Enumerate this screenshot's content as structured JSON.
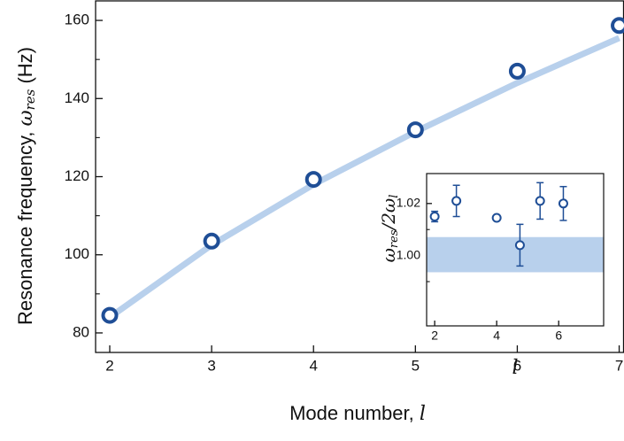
{
  "chart_data": [
    {
      "type": "scatter",
      "x_label": "Mode number, ",
      "x_label_symbol": "l",
      "y_label": "Resonance frequency, ",
      "y_label_symbol": "ω",
      "y_label_sub": "res",
      "y_label_unit": " (Hz)",
      "xlim": [
        1.861,
        7.043
      ],
      "ylim": [
        75,
        165
      ],
      "xticks": [
        2,
        3,
        4,
        5,
        6,
        7
      ],
      "yticks": [
        80,
        100,
        120,
        140,
        160
      ],
      "y_minor_ticks": [
        90,
        110,
        130,
        150
      ],
      "x": [
        2,
        3,
        4,
        5,
        6,
        7
      ],
      "series": [
        {
          "type": "line",
          "color": "#b8d0ec",
          "values": [
            84,
            102.5,
            118,
            131.5,
            144,
            155.5
          ]
        },
        {
          "type": "scatter",
          "color": "#1f4e96",
          "values": [
            84.5,
            103.5,
            119.3,
            132,
            147,
            158.7
          ]
        }
      ]
    },
    {
      "type": "errorbar",
      "x_label": "l",
      "y_label_symbol": "ω",
      "y_label_sub": "res",
      "y_label_div": "/2",
      "y_label_symbol2": "ω",
      "y_label_sub2": "l",
      "xlim": [
        1.74,
        7.45
      ],
      "ylim": [
        0.973,
        1.0315
      ],
      "xticks": [
        2,
        4,
        6
      ],
      "yticks": [
        {
          "value": 1.0,
          "label": "1.00"
        },
        {
          "value": 1.02,
          "label": "1.02"
        }
      ],
      "y_minor_ticks": [
        0.99,
        1.01
      ],
      "band": [
        0.9936,
        1.0071
      ],
      "band_color": "#b8d0ec",
      "color": "#1f4e96",
      "x": [
        2,
        2.7,
        4,
        4.75,
        5.4,
        6.15
      ],
      "values": [
        1.015,
        1.021,
        1.0145,
        1.004,
        1.021,
        1.02
      ],
      "errors": [
        0.002,
        0.006,
        0,
        0.008,
        0.007,
        0.0065
      ]
    }
  ]
}
